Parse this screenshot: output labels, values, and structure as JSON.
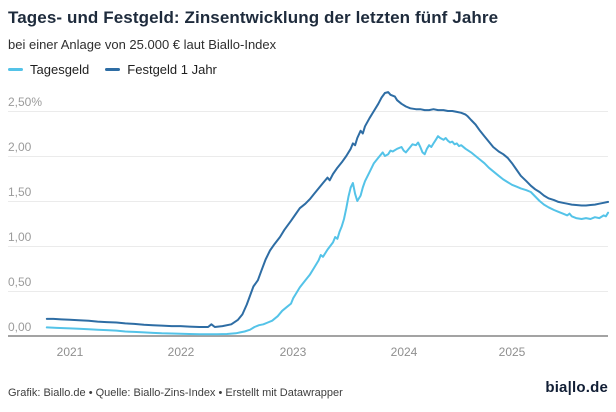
{
  "header": {
    "title": "Tages- und Festgeld: Zinsentwicklung der letzten fünf Jahre",
    "subtitle": "bei einer Anlage von 25.000 € laut Biallo-Index"
  },
  "legend": {
    "items": [
      {
        "label": "Tagesgeld",
        "color": "#54c3e8"
      },
      {
        "label": "Festgeld 1 Jahr",
        "color": "#2e6da4"
      }
    ]
  },
  "footer": {
    "credit": "Grafik: Biallo.de • Quelle: Biallo-Zins-Index • Erstellt mit Datawrapper",
    "logo": "bia|lo.de"
  },
  "chart_data": {
    "type": "line",
    "title": "Tages- und Festgeld: Zinsentwicklung der letzten fünf Jahre",
    "subtitle": "bei einer Anlage von 25.000 € laut Biallo-Index",
    "grid": "horizontal",
    "legend_position": "top-left",
    "x_axis": {
      "ticks": [
        "2021",
        "2022",
        "2023",
        "2024",
        "2025"
      ],
      "range": [
        2020.79,
        2025.88
      ]
    },
    "y_axis": {
      "ticks": [
        "2,50%",
        "2,00",
        "1,50",
        "1,00",
        "0,50",
        "0,00"
      ],
      "tick_values": [
        2.5,
        2.0,
        1.5,
        1.0,
        0.5,
        0.0
      ],
      "unit": "%",
      "ylim": [
        0,
        2.8
      ]
    },
    "series": [
      {
        "name": "Tagesgeld",
        "color": "#54c3e8",
        "points": [
          [
            2020.79,
            0.095
          ],
          [
            2020.88,
            0.09
          ],
          [
            2021.0,
            0.085
          ],
          [
            2021.08,
            0.08
          ],
          [
            2021.17,
            0.075
          ],
          [
            2021.25,
            0.07
          ],
          [
            2021.33,
            0.065
          ],
          [
            2021.42,
            0.06
          ],
          [
            2021.5,
            0.05
          ],
          [
            2021.58,
            0.045
          ],
          [
            2021.67,
            0.04
          ],
          [
            2021.75,
            0.035
          ],
          [
            2021.83,
            0.03
          ],
          [
            2021.92,
            0.028
          ],
          [
            2022.0,
            0.025
          ],
          [
            2022.08,
            0.022
          ],
          [
            2022.17,
            0.02
          ],
          [
            2022.25,
            0.02
          ],
          [
            2022.33,
            0.02
          ],
          [
            2022.42,
            0.022
          ],
          [
            2022.5,
            0.03
          ],
          [
            2022.54,
            0.04
          ],
          [
            2022.58,
            0.05
          ],
          [
            2022.63,
            0.07
          ],
          [
            2022.67,
            0.1
          ],
          [
            2022.71,
            0.12
          ],
          [
            2022.75,
            0.13
          ],
          [
            2022.79,
            0.15
          ],
          [
            2022.83,
            0.17
          ],
          [
            2022.88,
            0.22
          ],
          [
            2022.92,
            0.28
          ],
          [
            2022.96,
            0.32
          ],
          [
            2023.0,
            0.36
          ],
          [
            2023.02,
            0.42
          ],
          [
            2023.04,
            0.46
          ],
          [
            2023.08,
            0.54
          ],
          [
            2023.13,
            0.62
          ],
          [
            2023.17,
            0.68
          ],
          [
            2023.21,
            0.76
          ],
          [
            2023.25,
            0.84
          ],
          [
            2023.27,
            0.9
          ],
          [
            2023.29,
            0.88
          ],
          [
            2023.33,
            0.96
          ],
          [
            2023.38,
            1.04
          ],
          [
            2023.4,
            1.1
          ],
          [
            2023.42,
            1.08
          ],
          [
            2023.44,
            1.16
          ],
          [
            2023.46,
            1.22
          ],
          [
            2023.48,
            1.3
          ],
          [
            2023.5,
            1.42
          ],
          [
            2023.52,
            1.55
          ],
          [
            2023.54,
            1.65
          ],
          [
            2023.56,
            1.7
          ],
          [
            2023.58,
            1.58
          ],
          [
            2023.6,
            1.5
          ],
          [
            2023.63,
            1.56
          ],
          [
            2023.65,
            1.65
          ],
          [
            2023.67,
            1.72
          ],
          [
            2023.71,
            1.82
          ],
          [
            2023.75,
            1.92
          ],
          [
            2023.79,
            1.98
          ],
          [
            2023.83,
            2.04
          ],
          [
            2023.85,
            2.0
          ],
          [
            2023.88,
            2.02
          ],
          [
            2023.9,
            2.06
          ],
          [
            2023.92,
            2.05
          ],
          [
            2023.96,
            2.08
          ],
          [
            2024.0,
            2.1
          ],
          [
            2024.02,
            2.06
          ],
          [
            2024.04,
            2.04
          ],
          [
            2024.08,
            2.1
          ],
          [
            2024.1,
            2.13
          ],
          [
            2024.13,
            2.12
          ],
          [
            2024.15,
            2.15
          ],
          [
            2024.17,
            2.1
          ],
          [
            2024.19,
            2.04
          ],
          [
            2024.21,
            2.02
          ],
          [
            2024.23,
            2.08
          ],
          [
            2024.25,
            2.12
          ],
          [
            2024.27,
            2.1
          ],
          [
            2024.29,
            2.14
          ],
          [
            2024.31,
            2.18
          ],
          [
            2024.33,
            2.22
          ],
          [
            2024.35,
            2.2
          ],
          [
            2024.38,
            2.18
          ],
          [
            2024.4,
            2.2
          ],
          [
            2024.42,
            2.17
          ],
          [
            2024.44,
            2.15
          ],
          [
            2024.46,
            2.16
          ],
          [
            2024.48,
            2.13
          ],
          [
            2024.5,
            2.14
          ],
          [
            2024.52,
            2.11
          ],
          [
            2024.54,
            2.12
          ],
          [
            2024.58,
            2.08
          ],
          [
            2024.63,
            2.04
          ],
          [
            2024.67,
            2.0
          ],
          [
            2024.71,
            1.96
          ],
          [
            2024.75,
            1.92
          ],
          [
            2024.79,
            1.87
          ],
          [
            2024.83,
            1.83
          ],
          [
            2024.88,
            1.78
          ],
          [
            2024.92,
            1.74
          ],
          [
            2024.96,
            1.71
          ],
          [
            2025.0,
            1.68
          ],
          [
            2025.04,
            1.66
          ],
          [
            2025.08,
            1.64
          ],
          [
            2025.13,
            1.62
          ],
          [
            2025.17,
            1.6
          ],
          [
            2025.21,
            1.55
          ],
          [
            2025.25,
            1.5
          ],
          [
            2025.29,
            1.46
          ],
          [
            2025.33,
            1.43
          ],
          [
            2025.38,
            1.4
          ],
          [
            2025.42,
            1.38
          ],
          [
            2025.46,
            1.36
          ],
          [
            2025.5,
            1.34
          ],
          [
            2025.52,
            1.36
          ],
          [
            2025.54,
            1.33
          ],
          [
            2025.58,
            1.31
          ],
          [
            2025.63,
            1.3
          ],
          [
            2025.67,
            1.31
          ],
          [
            2025.71,
            1.3
          ],
          [
            2025.75,
            1.32
          ],
          [
            2025.79,
            1.31
          ],
          [
            2025.83,
            1.34
          ],
          [
            2025.85,
            1.33
          ],
          [
            2025.87,
            1.37
          ]
        ]
      },
      {
        "name": "Festgeld 1 Jahr",
        "color": "#2e6da4",
        "points": [
          [
            2020.79,
            0.19
          ],
          [
            2020.85,
            0.19
          ],
          [
            2020.92,
            0.185
          ],
          [
            2021.0,
            0.18
          ],
          [
            2021.08,
            0.175
          ],
          [
            2021.17,
            0.17
          ],
          [
            2021.25,
            0.16
          ],
          [
            2021.33,
            0.155
          ],
          [
            2021.42,
            0.15
          ],
          [
            2021.5,
            0.14
          ],
          [
            2021.58,
            0.135
          ],
          [
            2021.67,
            0.125
          ],
          [
            2021.75,
            0.12
          ],
          [
            2021.83,
            0.115
          ],
          [
            2021.92,
            0.11
          ],
          [
            2022.0,
            0.11
          ],
          [
            2022.08,
            0.105
          ],
          [
            2022.17,
            0.1
          ],
          [
            2022.25,
            0.1
          ],
          [
            2022.28,
            0.13
          ],
          [
            2022.31,
            0.1
          ],
          [
            2022.38,
            0.11
          ],
          [
            2022.46,
            0.13
          ],
          [
            2022.52,
            0.18
          ],
          [
            2022.56,
            0.24
          ],
          [
            2022.6,
            0.35
          ],
          [
            2022.63,
            0.45
          ],
          [
            2022.66,
            0.55
          ],
          [
            2022.7,
            0.62
          ],
          [
            2022.73,
            0.72
          ],
          [
            2022.77,
            0.85
          ],
          [
            2022.81,
            0.95
          ],
          [
            2022.85,
            1.02
          ],
          [
            2022.9,
            1.1
          ],
          [
            2022.94,
            1.18
          ],
          [
            2023.0,
            1.28
          ],
          [
            2023.04,
            1.35
          ],
          [
            2023.08,
            1.42
          ],
          [
            2023.13,
            1.47
          ],
          [
            2023.17,
            1.52
          ],
          [
            2023.21,
            1.58
          ],
          [
            2023.25,
            1.64
          ],
          [
            2023.29,
            1.7
          ],
          [
            2023.33,
            1.76
          ],
          [
            2023.35,
            1.73
          ],
          [
            2023.38,
            1.8
          ],
          [
            2023.42,
            1.87
          ],
          [
            2023.46,
            1.93
          ],
          [
            2023.5,
            2.0
          ],
          [
            2023.54,
            2.08
          ],
          [
            2023.56,
            2.14
          ],
          [
            2023.58,
            2.12
          ],
          [
            2023.6,
            2.2
          ],
          [
            2023.63,
            2.28
          ],
          [
            2023.65,
            2.25
          ],
          [
            2023.67,
            2.33
          ],
          [
            2023.71,
            2.42
          ],
          [
            2023.75,
            2.5
          ],
          [
            2023.79,
            2.58
          ],
          [
            2023.82,
            2.65
          ],
          [
            2023.85,
            2.7
          ],
          [
            2023.88,
            2.71
          ],
          [
            2023.9,
            2.68
          ],
          [
            2023.94,
            2.66
          ],
          [
            2023.96,
            2.62
          ],
          [
            2024.0,
            2.58
          ],
          [
            2024.04,
            2.55
          ],
          [
            2024.08,
            2.53
          ],
          [
            2024.13,
            2.52
          ],
          [
            2024.17,
            2.52
          ],
          [
            2024.21,
            2.51
          ],
          [
            2024.25,
            2.51
          ],
          [
            2024.29,
            2.52
          ],
          [
            2024.33,
            2.51
          ],
          [
            2024.38,
            2.51
          ],
          [
            2024.42,
            2.5
          ],
          [
            2024.46,
            2.5
          ],
          [
            2024.5,
            2.49
          ],
          [
            2024.54,
            2.48
          ],
          [
            2024.58,
            2.46
          ],
          [
            2024.6,
            2.44
          ],
          [
            2024.63,
            2.4
          ],
          [
            2024.67,
            2.35
          ],
          [
            2024.71,
            2.28
          ],
          [
            2024.75,
            2.22
          ],
          [
            2024.79,
            2.16
          ],
          [
            2024.83,
            2.1
          ],
          [
            2024.88,
            2.05
          ],
          [
            2024.92,
            2.02
          ],
          [
            2024.96,
            1.98
          ],
          [
            2025.0,
            1.92
          ],
          [
            2025.04,
            1.85
          ],
          [
            2025.08,
            1.78
          ],
          [
            2025.13,
            1.72
          ],
          [
            2025.17,
            1.67
          ],
          [
            2025.21,
            1.63
          ],
          [
            2025.25,
            1.6
          ],
          [
            2025.29,
            1.56
          ],
          [
            2025.33,
            1.53
          ],
          [
            2025.38,
            1.51
          ],
          [
            2025.42,
            1.49
          ],
          [
            2025.46,
            1.48
          ],
          [
            2025.5,
            1.47
          ],
          [
            2025.54,
            1.46
          ],
          [
            2025.58,
            1.455
          ],
          [
            2025.63,
            1.45
          ],
          [
            2025.67,
            1.45
          ],
          [
            2025.71,
            1.455
          ],
          [
            2025.75,
            1.46
          ],
          [
            2025.79,
            1.47
          ],
          [
            2025.83,
            1.48
          ],
          [
            2025.87,
            1.49
          ]
        ]
      }
    ]
  }
}
